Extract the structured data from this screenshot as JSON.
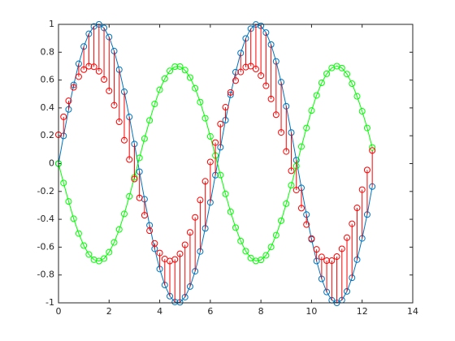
{
  "chart_data": {
    "type": "line",
    "x": [
      0,
      0.2,
      0.4,
      0.6,
      0.8,
      1,
      1.2,
      1.4,
      1.6,
      1.8,
      2,
      2.2,
      2.4,
      2.6,
      2.8,
      3,
      3.2,
      3.4,
      3.6,
      3.8,
      4,
      4.2,
      4.4,
      4.6,
      4.8,
      5,
      5.2,
      5.4,
      5.6,
      5.8,
      6,
      6.2,
      6.4,
      6.6,
      6.8,
      7,
      7.2,
      7.4,
      7.6,
      7.8,
      8,
      8.2,
      8.4,
      8.6,
      8.8,
      9,
      9.2,
      9.4,
      9.6,
      9.8,
      10,
      10.2,
      10.4,
      10.6,
      10.8,
      11,
      11.2,
      11.4,
      11.6,
      11.8,
      12,
      12.2,
      12.4
    ],
    "series": [
      {
        "color": "#0072bd",
        "style": "line",
        "marker": "o",
        "values": [
          0,
          0.199,
          0.389,
          0.565,
          0.717,
          0.841,
          0.932,
          0.985,
          1.0,
          0.974,
          0.909,
          0.808,
          0.675,
          0.516,
          0.335,
          0.141,
          -0.058,
          -0.256,
          -0.443,
          -0.612,
          -0.757,
          -0.872,
          -0.952,
          -0.994,
          -0.996,
          -0.959,
          -0.883,
          -0.773,
          -0.631,
          -0.465,
          -0.279,
          -0.083,
          0.117,
          0.312,
          0.494,
          0.657,
          0.794,
          0.899,
          0.969,
          0.999,
          0.989,
          0.941,
          0.855,
          0.734,
          0.585,
          0.412,
          0.223,
          0.025,
          -0.174,
          -0.366,
          -0.544,
          -0.7,
          -0.828,
          -0.922,
          -0.981,
          -1.0,
          -0.98,
          -0.918,
          -0.82,
          -0.69,
          -0.537,
          -0.366,
          -0.165
        ]
      },
      {
        "color": "#00ff00",
        "style": "line",
        "marker": "o",
        "values": [
          0,
          -0.139,
          -0.272,
          -0.396,
          -0.502,
          -0.589,
          -0.652,
          -0.69,
          -0.7,
          -0.682,
          -0.636,
          -0.566,
          -0.473,
          -0.361,
          -0.235,
          -0.099,
          0.041,
          0.179,
          0.31,
          0.428,
          0.53,
          0.61,
          0.666,
          0.696,
          0.697,
          0.671,
          0.618,
          0.541,
          0.442,
          0.326,
          0.195,
          0.058,
          -0.082,
          -0.218,
          -0.346,
          -0.46,
          -0.556,
          -0.629,
          -0.678,
          -0.699,
          -0.692,
          -0.659,
          -0.599,
          -0.514,
          -0.41,
          -0.288,
          -0.156,
          -0.018,
          0.122,
          0.256,
          0.381,
          0.49,
          0.58,
          0.645,
          0.687,
          0.7,
          0.686,
          0.643,
          0.574,
          0.483,
          0.376,
          0.256,
          0.116
        ]
      },
      {
        "color": "#ff0000",
        "style": "stem",
        "stem_from": 0,
        "marker": "o",
        "values": [
          0.207,
          0.336,
          0.451,
          0.548,
          0.624,
          0.675,
          0.699,
          0.695,
          0.663,
          0.604,
          0.522,
          0.419,
          0.3,
          0.168,
          0.029,
          -0.111,
          -0.246,
          -0.371,
          -0.482,
          -0.573,
          -0.642,
          -0.685,
          -0.7,
          -0.688,
          -0.648,
          -0.583,
          -0.494,
          -0.386,
          -0.262,
          -0.127,
          0.012,
          0.151,
          0.284,
          0.405,
          0.511,
          0.596,
          0.658,
          0.693,
          0.7,
          0.679,
          0.632,
          0.559,
          0.464,
          0.351,
          0.224,
          0.087,
          -0.052,
          -0.19,
          -0.32,
          -0.438,
          -0.538,
          -0.616,
          -0.67,
          -0.697,
          -0.697,
          -0.668,
          -0.612,
          -0.532,
          -0.432,
          -0.318,
          -0.187,
          -0.046,
          0.094
        ]
      }
    ],
    "xlim": [
      0,
      14
    ],
    "xticks": [
      0,
      2,
      4,
      6,
      8,
      10,
      12,
      14
    ],
    "ylim": [
      -1,
      1
    ],
    "yticks": [
      -1,
      -0.8,
      -0.6,
      -0.4,
      -0.2,
      0,
      0.2,
      0.4,
      0.6,
      0.8,
      1
    ],
    "grid": false
  }
}
